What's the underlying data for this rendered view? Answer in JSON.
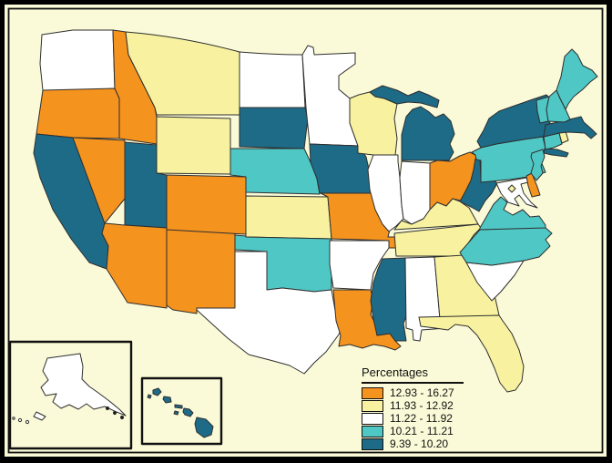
{
  "legend": {
    "title": "Percentages",
    "classes": [
      {
        "label": "12.93 - 16.27",
        "color": "#F5931F"
      },
      {
        "label": "11.93 - 12.92",
        "color": "#F8F2A0"
      },
      {
        "label": "11.22 - 11.92",
        "color": "#FFFFFF"
      },
      {
        "label": "10.21 - 11.21",
        "color": "#4FC7C5"
      },
      {
        "label": "9.39 - 10.20",
        "color": "#1E6B87"
      }
    ]
  },
  "colors": {
    "frame": "#000000",
    "canvas_background": "#FAFAD8",
    "neatline": "#111111",
    "state_outline": "#2E2E2E"
  },
  "states": [
    {
      "id": "WA",
      "name": "Washington",
      "class": 2
    },
    {
      "id": "OR",
      "name": "Oregon",
      "class": 0
    },
    {
      "id": "CA",
      "name": "California",
      "class": 4
    },
    {
      "id": "NV",
      "name": "Nevada",
      "class": 0
    },
    {
      "id": "ID",
      "name": "Idaho",
      "class": 0
    },
    {
      "id": "MT",
      "name": "Montana",
      "class": 1
    },
    {
      "id": "WY",
      "name": "Wyoming",
      "class": 1
    },
    {
      "id": "UT",
      "name": "Utah",
      "class": 4
    },
    {
      "id": "AZ",
      "name": "Arizona",
      "class": 0
    },
    {
      "id": "NM",
      "name": "New Mexico",
      "class": 0
    },
    {
      "id": "CO",
      "name": "Colorado",
      "class": 0
    },
    {
      "id": "ND",
      "name": "North Dakota",
      "class": 2
    },
    {
      "id": "SD",
      "name": "South Dakota",
      "class": 4
    },
    {
      "id": "NE",
      "name": "Nebraska",
      "class": 3
    },
    {
      "id": "KS",
      "name": "Kansas",
      "class": 1
    },
    {
      "id": "OK",
      "name": "Oklahoma",
      "class": 3
    },
    {
      "id": "TX",
      "name": "Texas",
      "class": 2
    },
    {
      "id": "MN",
      "name": "Minnesota",
      "class": 2
    },
    {
      "id": "IA",
      "name": "Iowa",
      "class": 4
    },
    {
      "id": "MO",
      "name": "Missouri",
      "class": 0
    },
    {
      "id": "AR",
      "name": "Arkansas",
      "class": 2
    },
    {
      "id": "LA",
      "name": "Louisiana",
      "class": 0
    },
    {
      "id": "WI",
      "name": "Wisconsin",
      "class": 1
    },
    {
      "id": "IL",
      "name": "Illinois",
      "class": 2
    },
    {
      "id": "MI",
      "name": "Michigan",
      "class": 4
    },
    {
      "id": "IN",
      "name": "Indiana",
      "class": 2
    },
    {
      "id": "OH",
      "name": "Ohio",
      "class": 0
    },
    {
      "id": "KY",
      "name": "Kentucky",
      "class": 1
    },
    {
      "id": "TN",
      "name": "Tennessee",
      "class": 1
    },
    {
      "id": "MS",
      "name": "Mississippi",
      "class": 4
    },
    {
      "id": "AL",
      "name": "Alabama",
      "class": 2
    },
    {
      "id": "GA",
      "name": "Georgia",
      "class": 1
    },
    {
      "id": "FL",
      "name": "Florida",
      "class": 1
    },
    {
      "id": "SC",
      "name": "South Carolina",
      "class": 2
    },
    {
      "id": "NC",
      "name": "North Carolina",
      "class": 3
    },
    {
      "id": "VA",
      "name": "Virginia",
      "class": 3
    },
    {
      "id": "WV",
      "name": "West Virginia",
      "class": 4
    },
    {
      "id": "MD",
      "name": "Maryland",
      "class": 2
    },
    {
      "id": "DC",
      "name": "District of Columbia",
      "class": 1
    },
    {
      "id": "DE",
      "name": "Delaware",
      "class": 0
    },
    {
      "id": "PA",
      "name": "Pennsylvania",
      "class": 3
    },
    {
      "id": "NJ",
      "name": "New Jersey",
      "class": 3
    },
    {
      "id": "NY",
      "name": "New York",
      "class": 4
    },
    {
      "id": "CT",
      "name": "Connecticut",
      "class": 3
    },
    {
      "id": "RI",
      "name": "Rhode Island",
      "class": 1
    },
    {
      "id": "MA",
      "name": "Massachusetts",
      "class": 4
    },
    {
      "id": "VT",
      "name": "Vermont",
      "class": 3
    },
    {
      "id": "NH",
      "name": "New Hampshire",
      "class": 3
    },
    {
      "id": "ME",
      "name": "Maine",
      "class": 3
    },
    {
      "id": "AK",
      "name": "Alaska",
      "class": 2
    },
    {
      "id": "HI",
      "name": "Hawaii",
      "class": 4
    }
  ]
}
